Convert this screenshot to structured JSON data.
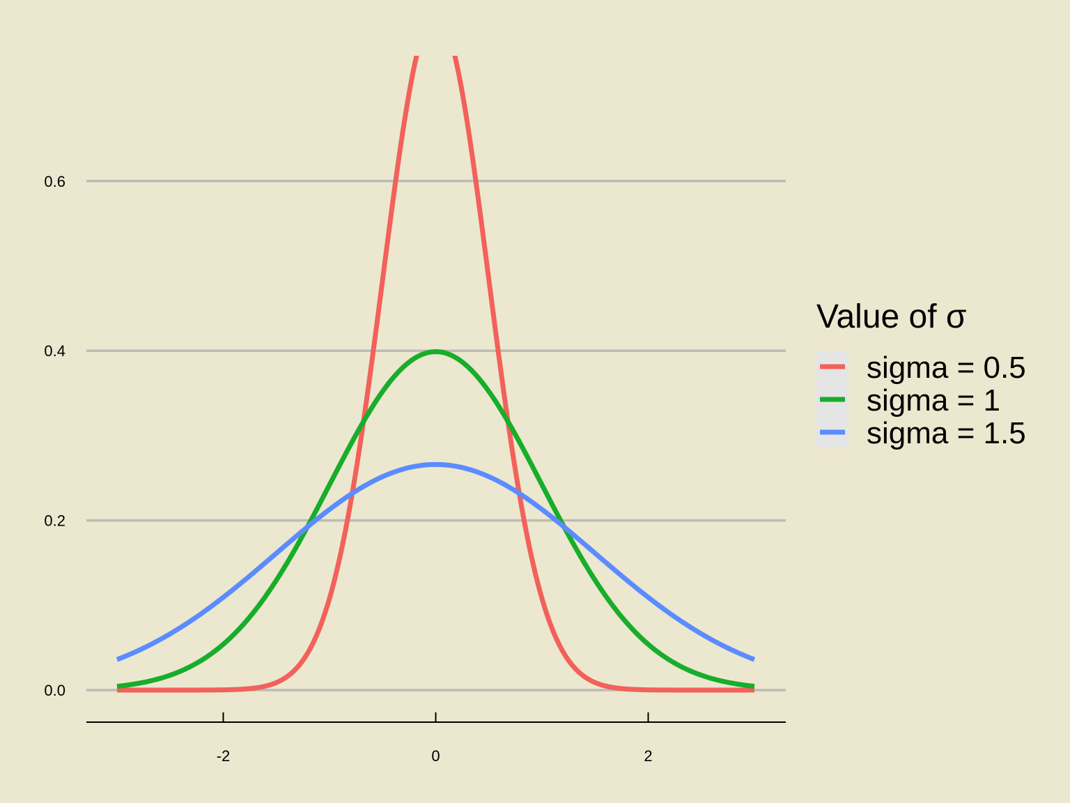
{
  "chart_data": {
    "type": "line",
    "title": "",
    "xlabel": "",
    "ylabel": "",
    "xlim": [
      -3.3,
      3.3
    ],
    "ylim": [
      -0.037,
      0.75
    ],
    "x_ticks": [
      -2,
      0,
      2
    ],
    "x_tick_labels": [
      "-2",
      "0",
      "2"
    ],
    "y_ticks": [
      0.0,
      0.2,
      0.4,
      0.6
    ],
    "y_tick_labels": [
      "0.0",
      "0.2",
      "0.4",
      "0.6"
    ],
    "grid": "horizontal",
    "legend": {
      "title": "Value of σ",
      "placement": "right",
      "entries": [
        "sigma = 0.5",
        "sigma = 1",
        "sigma = 1.5"
      ]
    },
    "x_range": [
      -3,
      3
    ],
    "series": [
      {
        "name": "sigma = 0.5",
        "color": "#f2615a",
        "mean": 0,
        "sd": 0.5,
        "peak": 0.798
      },
      {
        "name": "sigma = 1",
        "color": "#18ad2b",
        "mean": 0,
        "sd": 1.0,
        "peak": 0.399
      },
      {
        "name": "sigma = 1.5",
        "color": "#5b8cff",
        "mean": 0,
        "sd": 1.5,
        "peak": 0.266
      }
    ]
  },
  "colors": {
    "background": "#ece7cf",
    "gridline": "#bcbcb6",
    "axis": "#000000",
    "legend_key_bg": "#e5e5e5"
  }
}
